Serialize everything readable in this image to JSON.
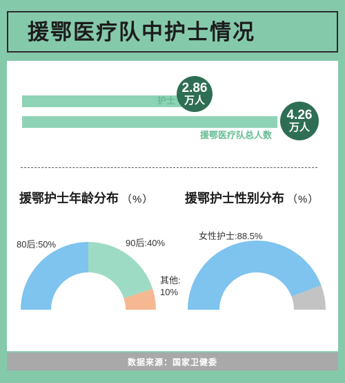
{
  "title": "援鄂医疗队中护士情况",
  "bars": {
    "nurses": {
      "label": "护士",
      "value": 2.86,
      "badge_num": "2.86",
      "badge_unit": "万人"
    },
    "total": {
      "label": "援鄂医疗队总人数",
      "value": 4.26,
      "badge_num": "4.26",
      "badge_unit": "万人"
    }
  },
  "charts": {
    "age": {
      "title": "援鄂护士年龄分布",
      "unit": "（%）"
    },
    "gender": {
      "title": "援鄂护士性别分布",
      "unit": "（%）"
    }
  },
  "chart_data": [
    {
      "type": "bar",
      "orientation": "horizontal",
      "categories": [
        "护士",
        "援鄂医疗队总人数"
      ],
      "values": [
        2.86,
        4.26
      ],
      "unit": "万人"
    },
    {
      "type": "pie",
      "style": "half-donut",
      "title": "援鄂护士年龄分布",
      "ylabel": "%",
      "slices": [
        {
          "label": "80后:50%",
          "value": 50,
          "color": "#7fc3ef"
        },
        {
          "label": "90后:40%",
          "value": 40,
          "color": "#9edbc4"
        },
        {
          "label": "其他:10%",
          "value": 10,
          "color": "#f6b893"
        }
      ]
    },
    {
      "type": "pie",
      "style": "half-donut",
      "title": "援鄂护士性别分布",
      "ylabel": "%",
      "slices": [
        {
          "label": "女性护士:88.5%",
          "value": 88.5,
          "color": "#7fc3ef"
        },
        {
          "label": "",
          "value": 11.5,
          "color": "#c3c3c3"
        }
      ]
    }
  ],
  "source": "数据来源：国家卫健委",
  "colors": {
    "background": "#85c9ab",
    "bar": "#8fd3b6",
    "badge": "#2e6e54",
    "footer": "#a9a9a9"
  }
}
